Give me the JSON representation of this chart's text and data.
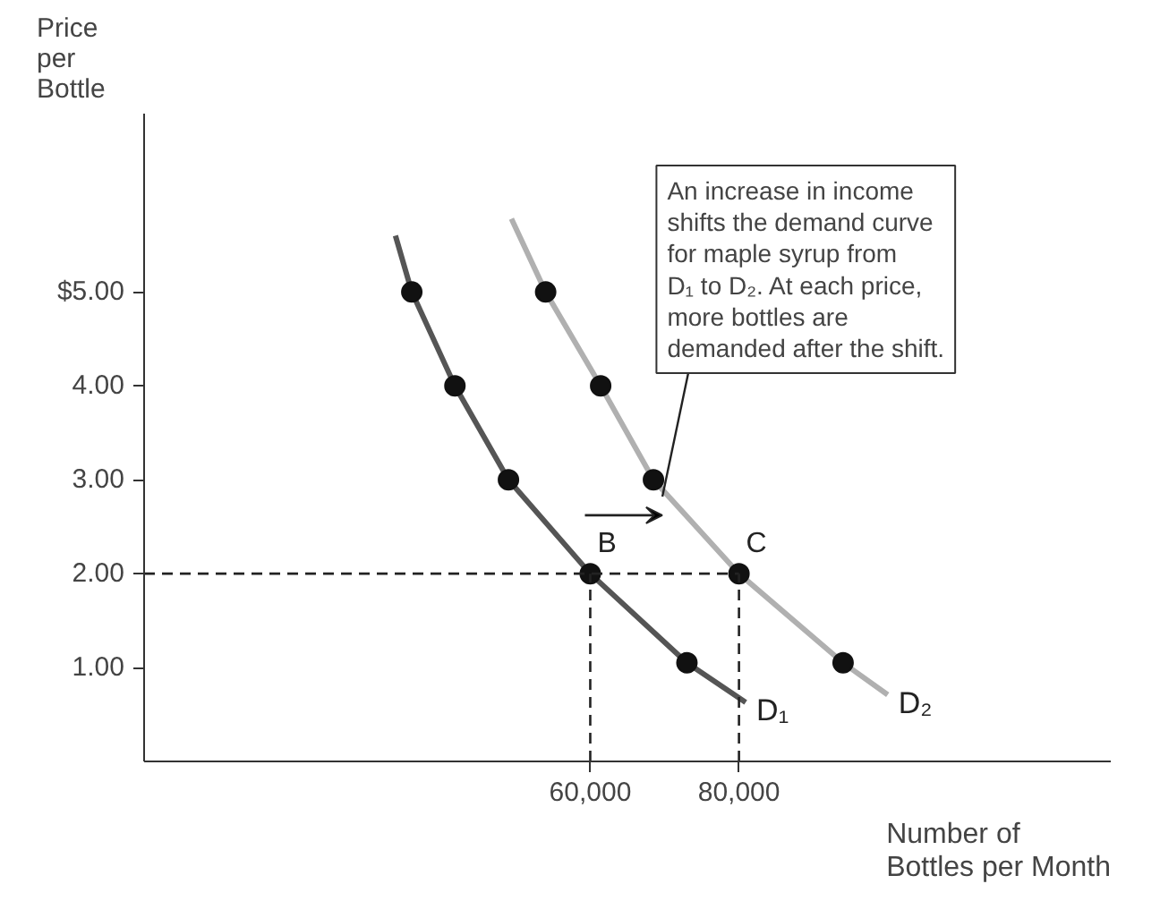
{
  "chart_data": {
    "type": "line",
    "xlabel": "Number of\nBottles per Month",
    "ylabel": "Price\nper\nBottle",
    "xlim": [
      0,
      130000
    ],
    "ylim": [
      0,
      6.9
    ],
    "xticks": [
      {
        "value": 60000,
        "label": "60,000"
      },
      {
        "value": 80000,
        "label": "80,000"
      }
    ],
    "yticks": [
      {
        "value": 1,
        "label": "1.00"
      },
      {
        "value": 2,
        "label": "2.00"
      },
      {
        "value": 3,
        "label": "3.00"
      },
      {
        "value": 4,
        "label": "4.00"
      },
      {
        "value": 5,
        "label": "$5.00"
      }
    ],
    "grid": false,
    "series": [
      {
        "name": "D₁",
        "color": "#555555",
        "x": [
          33800,
          36000,
          41800,
          49000,
          60000,
          73000,
          80900
        ],
        "values": [
          5.6,
          5,
          4,
          3,
          2,
          1.05,
          0.63
        ]
      },
      {
        "name": "D₂",
        "color": "#b0b0b0",
        "x": [
          49400,
          54000,
          61400,
          68500,
          80000,
          94000,
          100000
        ],
        "values": [
          5.78,
          5,
          4,
          3,
          2,
          1.05,
          0.71
        ]
      },
      {
        "type": "scatter",
        "color": "#111111",
        "marker": "circle",
        "x": [
          36000,
          41800,
          49000,
          60000,
          73000,
          54000,
          61400,
          68500,
          80000,
          94000
        ],
        "values": [
          5,
          4,
          3,
          2,
          1.05,
          5,
          4,
          3,
          2,
          1.05
        ]
      },
      {
        "type": "line",
        "color": "#222222",
        "line_style": "dashed",
        "x": [
          0,
          80000
        ],
        "values": [
          2,
          2
        ]
      },
      {
        "type": "line",
        "color": "#222222",
        "line_style": "dashed",
        "x": [
          60000,
          60000
        ],
        "values": [
          0,
          2
        ]
      },
      {
        "type": "line",
        "color": "#222222",
        "line_style": "dashed",
        "x": [
          80000,
          80000
        ],
        "values": [
          0,
          2
        ]
      }
    ],
    "annotations": [
      {
        "text": "B",
        "x": 60000,
        "y": 2
      },
      {
        "text": "C",
        "x": 80000,
        "y": 2
      },
      {
        "text": "An increase in income\nshifts the demand curve\nfor maple syrup from\nD₁ to D₂. At each price,\nmore bottles are\ndemanded after the shift.",
        "x": 69700,
        "y": 2.82
      }
    ]
  }
}
